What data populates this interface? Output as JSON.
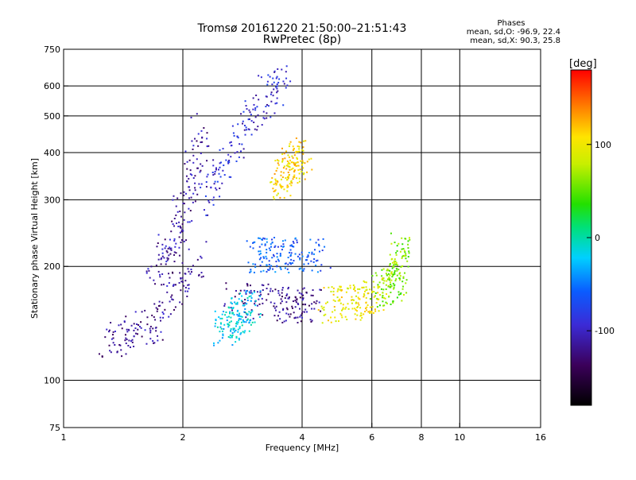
{
  "chart_data": {
    "type": "scatter",
    "title": "Tromsø 20161220 21:50:00–21:51:43",
    "subtitle": "RwPretec (8p)",
    "xlabel": "Frequency [MHz]",
    "ylabel": "Stationary phase Virtual Height [km]",
    "x_scale": "log",
    "y_scale": "log",
    "xlim": [
      1,
      16
    ],
    "ylim": [
      75,
      750
    ],
    "x_ticks": [
      1,
      2,
      4,
      6,
      8,
      10,
      16
    ],
    "x_tick_labels": [
      "1",
      "2",
      "4",
      "6",
      "8",
      "10",
      "16"
    ],
    "x_grid": [
      2,
      4,
      6,
      8,
      10
    ],
    "y_ticks": [
      75,
      100,
      200,
      300,
      400,
      500,
      600,
      750
    ],
    "y_tick_labels": [
      "75",
      "100",
      "200",
      "300",
      "400",
      "500",
      "600",
      "750"
    ],
    "y_grid": [
      100,
      200,
      300,
      400,
      500,
      600
    ],
    "grid": true,
    "phases_info": {
      "title": "Phases",
      "line_o": "mean, sd,O: -96.9, 22.4",
      "line_x": "mean, sd,X:  90.3, 25.8"
    },
    "colorbar": {
      "label": "[deg]",
      "range": [
        -180,
        180
      ],
      "ticks": [
        100,
        0,
        -100
      ],
      "tick_labels": [
        "100",
        "0",
        "-100"
      ]
    },
    "traces": [
      {
        "x": [
          1.3,
          1.7,
          2.2
        ],
        "y": [
          125,
          140,
          210
        ],
        "phase": -115
      },
      {
        "x": [
          1.7,
          2.0,
          2.25
        ],
        "y": [
          180,
          270,
          480
        ],
        "phase": -110
      },
      {
        "x": [
          2.3,
          2.7,
          3.2,
          3.6
        ],
        "y": [
          300,
          420,
          560,
          620
        ],
        "phase": -95
      },
      {
        "x": [
          3.0,
          3.6,
          4.5
        ],
        "y": [
          215,
          215,
          215
        ],
        "phase": -60
      },
      {
        "x": [
          2.6,
          3.5,
          4.3
        ],
        "y": [
          165,
          158,
          158
        ],
        "phase": -120
      },
      {
        "x": [
          4.6,
          5.5,
          6.3
        ],
        "y": [
          157,
          160,
          170
        ],
        "phase": 100
      },
      {
        "x": [
          6.3,
          7.0,
          7.1
        ],
        "y": [
          170,
          185,
          225
        ],
        "phase": 60
      },
      {
        "x": [
          3.5,
          4.0
        ],
        "y": [
          330,
          400
        ],
        "phase": 110
      },
      {
        "x": [
          2.5,
          3.0
        ],
        "y": [
          135,
          160
        ],
        "phase": -20
      }
    ]
  }
}
